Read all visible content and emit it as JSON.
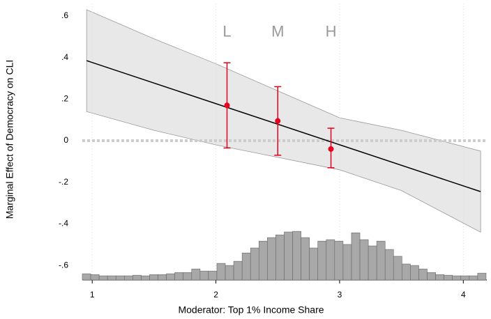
{
  "chart_data": {
    "type": "marginal_effects",
    "xlabel": "Moderator: Top 1% Income Share",
    "ylabel": "Marginal Effect of Democracy on CLI",
    "xlim": [
      0.92,
      4.19
    ],
    "ylim": [
      -0.67,
      0.66
    ],
    "xticks": [
      1,
      2,
      3,
      4
    ],
    "yticks": [
      {
        "value": 0.6,
        "label": ".6"
      },
      {
        "value": 0.4,
        "label": ".4"
      },
      {
        "value": 0.2,
        "label": ".2"
      },
      0,
      {
        "value": -0.2,
        "label": "-.2"
      },
      {
        "value": -0.4,
        "label": "-.4"
      },
      {
        "value": -0.6,
        "label": "-.6"
      }
    ],
    "grid": true,
    "line": {
      "color": "#000000",
      "x": [
        0.955,
        4.14
      ],
      "y": [
        0.385,
        -0.245
      ]
    },
    "band": {
      "color": "#e8e8e8",
      "x": [
        0.955,
        1.5,
        2.0,
        2.5,
        3.0,
        3.5,
        4.14
      ],
      "lower": [
        0.14,
        0.05,
        -0.02,
        -0.08,
        -0.14,
        -0.24,
        -0.44
      ],
      "upper": [
        0.63,
        0.49,
        0.37,
        0.24,
        0.11,
        0.05,
        -0.05
      ]
    },
    "points": {
      "color": "#e8001c",
      "labels": [
        "L",
        "M",
        "H"
      ],
      "label_y": 0.52,
      "x": [
        2.09,
        2.5,
        2.93
      ],
      "values": [
        0.17,
        0.095,
        -0.04
      ],
      "lower": [
        -0.035,
        -0.07,
        -0.13
      ],
      "upper": [
        0.375,
        0.26,
        0.06
      ]
    },
    "histogram": {
      "color": "#a8a8a8",
      "bins": [
        0.92,
        0.988,
        1.056,
        1.124,
        1.192,
        1.26,
        1.328,
        1.396,
        1.464,
        1.532,
        1.6,
        1.668,
        1.736,
        1.804,
        1.872,
        1.94,
        2.008,
        2.076,
        2.144,
        2.212,
        2.28,
        2.348,
        2.416,
        2.484,
        2.552,
        2.62,
        2.688,
        2.756,
        2.824,
        2.892,
        2.96,
        3.028,
        3.096,
        3.164,
        3.232,
        3.3,
        3.368,
        3.436,
        3.504,
        3.572,
        3.64,
        3.708,
        3.776,
        3.844,
        3.912,
        3.98,
        4.048,
        4.116,
        4.184
      ],
      "values": [
        -0.64,
        -0.644,
        -0.65,
        -0.65,
        -0.65,
        -0.65,
        -0.647,
        -0.65,
        -0.644,
        -0.644,
        -0.64,
        -0.634,
        -0.634,
        -0.617,
        -0.627,
        -0.627,
        -0.59,
        -0.6,
        -0.58,
        -0.54,
        -0.516,
        -0.483,
        -0.466,
        -0.453,
        -0.439,
        -0.436,
        -0.466,
        -0.516,
        -0.483,
        -0.476,
        -0.483,
        -0.499,
        -0.443,
        -0.476,
        -0.506,
        -0.483,
        -0.523,
        -0.556,
        -0.593,
        -0.6,
        -0.617,
        -0.634,
        -0.644,
        -0.647,
        -0.65,
        -0.65,
        -0.65,
        -0.637
      ]
    }
  }
}
